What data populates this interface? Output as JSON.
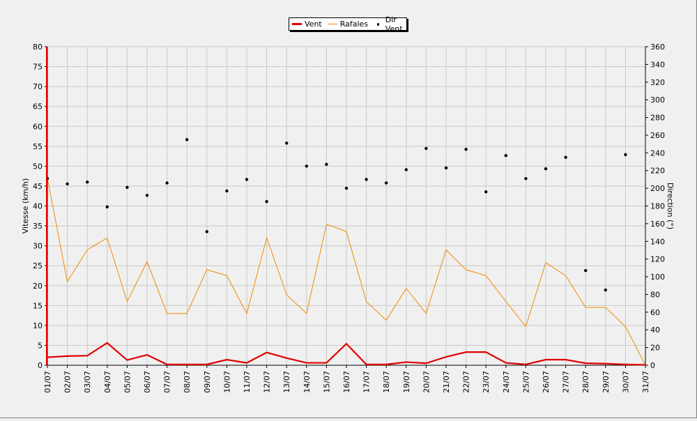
{
  "chart_data": {
    "type": "line",
    "categories": [
      "01/07",
      "02/07",
      "03/07",
      "04/07",
      "05/07",
      "06/07",
      "07/07",
      "08/07",
      "09/07",
      "10/07",
      "11/07",
      "12/07",
      "13/07",
      "14/07",
      "15/07",
      "16/07",
      "17/07",
      "18/07",
      "19/07",
      "20/07",
      "21/07",
      "22/07",
      "23/07",
      "24/07",
      "25/07",
      "26/07",
      "27/07",
      "28/07",
      "29/07",
      "30/07",
      "31/07"
    ],
    "ylabel": "Vitesse (km/h)",
    "ylabel_right": "Direction (°)",
    "ylim": [
      0,
      80
    ],
    "ylim_right": [
      0,
      360
    ],
    "yticks": [
      0,
      5,
      10,
      15,
      20,
      25,
      30,
      35,
      40,
      45,
      50,
      55,
      60,
      65,
      70,
      75,
      80
    ],
    "yticks_right": [
      0,
      20,
      40,
      60,
      80,
      100,
      120,
      140,
      160,
      180,
      200,
      220,
      240,
      260,
      280,
      300,
      320,
      340,
      360
    ],
    "grid": true,
    "legend_placement": "top-center",
    "series": [
      {
        "name": "Vent",
        "color": "#e00000",
        "axis": "left",
        "values": [
          2.0,
          2.3,
          2.4,
          5.6,
          1.3,
          2.6,
          0.2,
          0.2,
          0.2,
          1.4,
          0.6,
          3.2,
          1.8,
          0.6,
          0.6,
          5.4,
          0.2,
          0.2,
          0.8,
          0.5,
          2.1,
          3.3,
          3.3,
          0.6,
          0.2,
          1.4,
          1.4,
          0.5,
          0.4,
          0.2,
          0.1
        ]
      },
      {
        "name": "Rafales",
        "color": "#f08c00",
        "axis": "left",
        "values": [
          47,
          21,
          29,
          32,
          16,
          26,
          13,
          13,
          24,
          22.5,
          13,
          32,
          17.7,
          13,
          35.4,
          33.6,
          16,
          11.3,
          19.3,
          13,
          29,
          24,
          22.5,
          16,
          9.7,
          25.8,
          22.5,
          14.5,
          14.5,
          9.7,
          0
        ]
      },
      {
        "name": "Dir Vent",
        "color": "#000000",
        "axis": "right",
        "style": "points",
        "values": [
          211,
          205,
          207,
          179,
          201,
          192,
          206,
          255,
          151,
          197,
          210,
          185,
          251,
          225,
          227,
          200,
          210,
          206,
          221,
          245,
          223,
          244,
          196,
          237,
          211,
          222,
          235,
          107,
          85,
          238,
          null
        ]
      }
    ]
  }
}
